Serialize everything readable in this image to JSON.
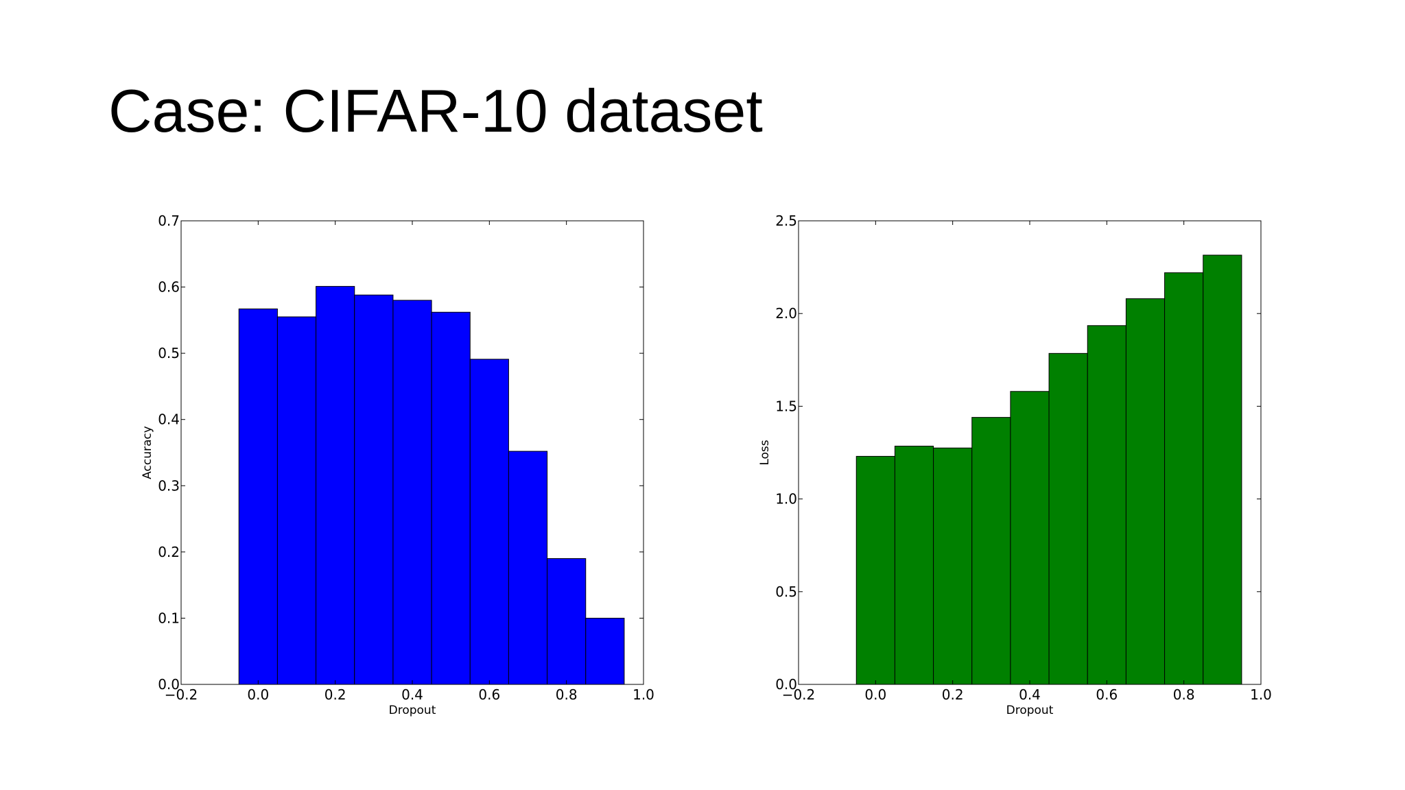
{
  "slide": {
    "title": "Case: CIFAR-10 dataset"
  },
  "chart_data": [
    {
      "type": "bar",
      "title": "",
      "xlabel": "Dropout",
      "ylabel": "Accuracy",
      "categories": [
        0.0,
        0.1,
        0.2,
        0.3,
        0.4,
        0.5,
        0.6,
        0.7,
        0.8,
        0.9
      ],
      "values": [
        0.567,
        0.555,
        0.601,
        0.588,
        0.58,
        0.562,
        0.491,
        0.352,
        0.19,
        0.1
      ],
      "bar_width": 0.1,
      "xlim": [
        -0.2,
        1.0
      ],
      "ylim": [
        0.0,
        0.7
      ],
      "xticks": [
        "−0.2",
        "0.0",
        "0.2",
        "0.4",
        "0.6",
        "0.8",
        "1.0"
      ],
      "yticks": [
        "0.0",
        "0.1",
        "0.2",
        "0.3",
        "0.4",
        "0.5",
        "0.6",
        "0.7"
      ],
      "color": "#0000ff",
      "grid": false
    },
    {
      "type": "bar",
      "title": "",
      "xlabel": "Dropout",
      "ylabel": "Loss",
      "categories": [
        0.0,
        0.1,
        0.2,
        0.3,
        0.4,
        0.5,
        0.6,
        0.7,
        0.8,
        0.9
      ],
      "values": [
        1.23,
        1.285,
        1.275,
        1.44,
        1.58,
        1.785,
        1.935,
        2.08,
        2.22,
        2.315
      ],
      "bar_width": 0.1,
      "xlim": [
        -0.2,
        1.0
      ],
      "ylim": [
        0.0,
        2.5
      ],
      "xticks": [
        "−0.2",
        "0.0",
        "0.2",
        "0.4",
        "0.6",
        "0.8",
        "1.0"
      ],
      "yticks": [
        "0.0",
        "0.5",
        "1.0",
        "1.5",
        "2.0",
        "2.5"
      ],
      "color": "#008000",
      "grid": false
    }
  ]
}
